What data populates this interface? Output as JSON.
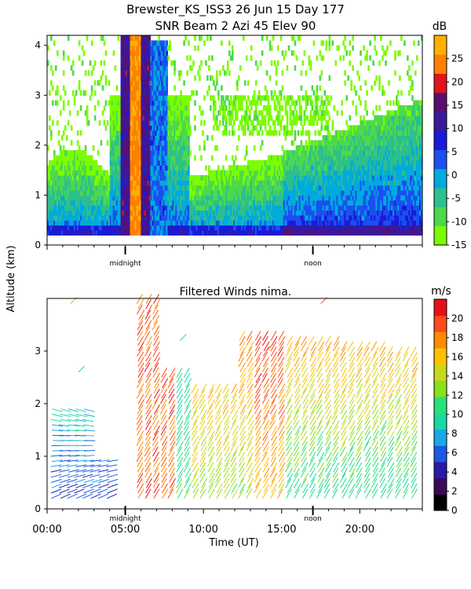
{
  "chart_data": [
    {
      "type": "heatmap",
      "title": "Brewster_KS_ISS3  26 Jun 15 Day 177",
      "subtitle": "SNR Beam 2 Azi  45 Elev 90",
      "ylabel": "Altitude (km)",
      "xlabel": "",
      "x_range_hours": [
        0,
        24
      ],
      "ylim": [
        0,
        4.2
      ],
      "y_ticks": [
        "0",
        "1",
        "2",
        "3",
        "4"
      ],
      "markers": [
        "midnight",
        "noon"
      ],
      "marker_hours": [
        5,
        17
      ],
      "colorbar": {
        "unit": "dB",
        "tick_labels": [
          "-15",
          "-10",
          "-5",
          "0",
          "5",
          "10",
          "15",
          "20",
          "25"
        ],
        "tick_values": [
          -15,
          -10,
          -5,
          0,
          5,
          10,
          15,
          20,
          25
        ],
        "range": [
          -15,
          30
        ],
        "colors": [
          "#7cfc00",
          "#4cd94c",
          "#2dbf8e",
          "#00aadd",
          "#1a4ff0",
          "#1a1ad9",
          "#3a1a9c",
          "#5a0f6e",
          "#e0141a",
          "#ff7f00",
          "#ffb000"
        ]
      }
    },
    {
      "type": "scatter",
      "title": "Filtered Winds nima.",
      "xlabel": "Time (UT)",
      "ylabel": "Altitude (km)",
      "x_range_hours": [
        0,
        24
      ],
      "ylim": [
        0,
        4
      ],
      "y_ticks": [
        "0",
        "1",
        "2",
        "3"
      ],
      "x_ticks": [
        "00:00",
        "05:00",
        "10:00",
        "15:00",
        "20:00"
      ],
      "x_tick_hours": [
        0,
        5,
        10,
        15,
        20
      ],
      "markers": [
        "midnight",
        "noon"
      ],
      "marker_hours": [
        5,
        17
      ],
      "colorbar": {
        "unit": "m/s",
        "tick_labels": [
          "0",
          "2",
          "4",
          "6",
          "8",
          "10",
          "12",
          "14",
          "16",
          "18",
          "20"
        ],
        "tick_values": [
          0,
          2,
          4,
          6,
          8,
          10,
          12,
          14,
          16,
          18,
          20
        ],
        "range": [
          0,
          22
        ],
        "colors": [
          "#000000",
          "#3a0a5a",
          "#2a1aa8",
          "#1a5ae6",
          "#1aa8e6",
          "#1ad9a0",
          "#2ae07a",
          "#8ae01a",
          "#c8d81a",
          "#ffc000",
          "#ff8a00",
          "#ff4a1a",
          "#e6101a"
        ]
      }
    }
  ]
}
